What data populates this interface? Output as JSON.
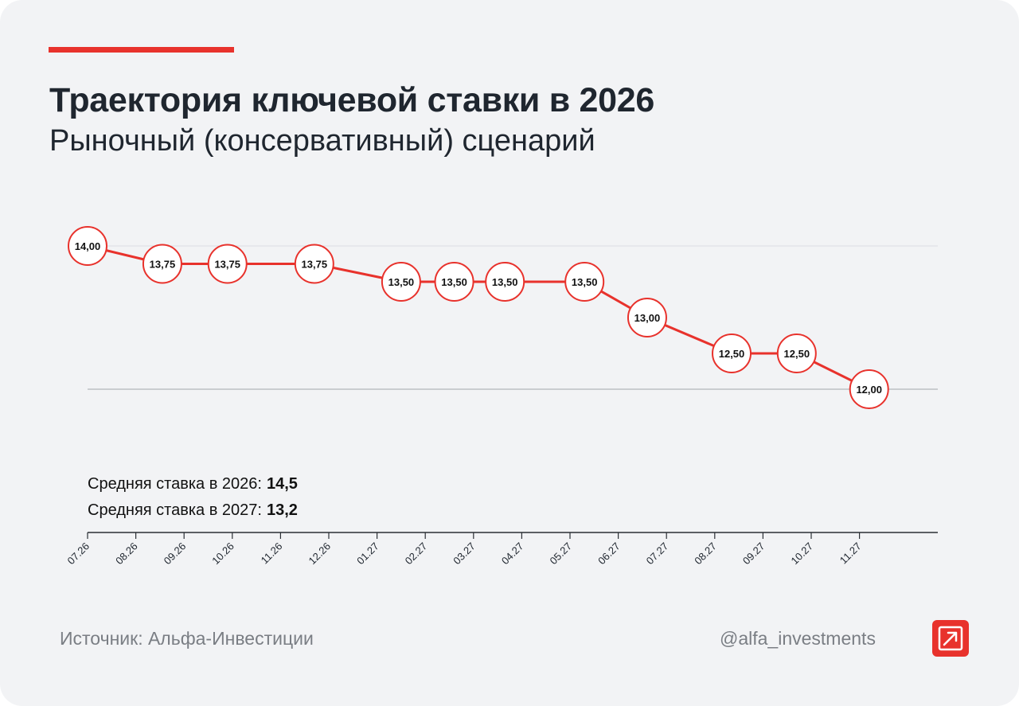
{
  "header": {
    "title": "Траектория ключевой ставки в 2026",
    "subtitle": "Рыночный (консервативный) сценарий"
  },
  "summary": {
    "avg_2026_label": "Средняя ставка в 2026:",
    "avg_2026_value": "14,5",
    "avg_2027_label": "Средняя ставка в 2027:",
    "avg_2027_value": "13,2"
  },
  "footer": {
    "source": "Источник: Альфа-Инвестиции",
    "handle": "@alfa_investments",
    "logo_icon": "arrow-up-right-icon"
  },
  "colors": {
    "accent": "#e8322c",
    "text": "#1f262f",
    "muted": "#7a7e84",
    "background": "#f2f3f5"
  },
  "chart_data": {
    "type": "line",
    "categories": [
      "07.26",
      "08.26",
      "09.26",
      "10.26",
      "11.26",
      "12.26",
      "01.27",
      "02.27",
      "03.27",
      "04.27",
      "05.27",
      "06.27",
      "07.27",
      "08.27",
      "09.27",
      "10.27",
      "11.27"
    ],
    "points": [
      {
        "x": 0.0,
        "value": 14.0,
        "label": "14,00"
      },
      {
        "x": 1.55,
        "value": 13.75,
        "label": "13,75"
      },
      {
        "x": 2.9,
        "value": 13.75,
        "label": "13,75"
      },
      {
        "x": 4.7,
        "value": 13.75,
        "label": "13,75"
      },
      {
        "x": 6.5,
        "value": 13.5,
        "label": "13,50"
      },
      {
        "x": 7.6,
        "value": 13.5,
        "label": "13,50"
      },
      {
        "x": 8.65,
        "value": 13.5,
        "label": "13,50"
      },
      {
        "x": 10.3,
        "value": 13.5,
        "label": "13,50"
      },
      {
        "x": 11.6,
        "value": 13.0,
        "label": "13,00"
      },
      {
        "x": 13.35,
        "value": 12.5,
        "label": "12,50"
      },
      {
        "x": 14.7,
        "value": 12.5,
        "label": "12,50"
      },
      {
        "x": 16.2,
        "value": 12.0,
        "label": "12,00"
      }
    ],
    "ylim": [
      12.0,
      14.0
    ],
    "xlabel": "",
    "ylabel": "",
    "grid": true,
    "legend": "none"
  }
}
